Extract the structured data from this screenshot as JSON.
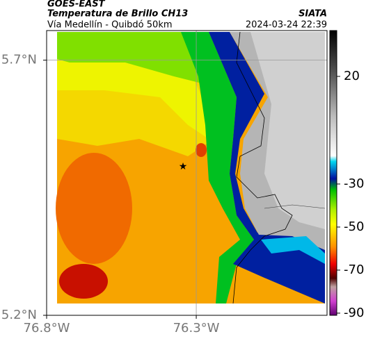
{
  "header": {
    "title": "GOES-EAST",
    "subtitle": "Temperatura de Brillo CH13",
    "region": "Vía Medellín - Quibdó 50km",
    "source": "SIATA",
    "timestamp": "2024-03-24 22:39"
  },
  "map": {
    "xlim": [
      -76.8,
      -75.863
    ],
    "ylim": [
      5.2,
      5.758
    ],
    "xticks": [
      {
        "value": -76.8,
        "label": "76.8°W"
      },
      {
        "value": -76.3,
        "label": "76.3°W"
      }
    ],
    "yticks": [
      {
        "value": 5.2,
        "label": "5.2°N"
      },
      {
        "value": 5.7,
        "label": "5.7°N"
      }
    ],
    "grid": true
  },
  "colorbar": {
    "lim": [
      -91,
      41.3
    ],
    "ticks": [
      20,
      -30,
      -50,
      -70,
      -90
    ]
  }
}
